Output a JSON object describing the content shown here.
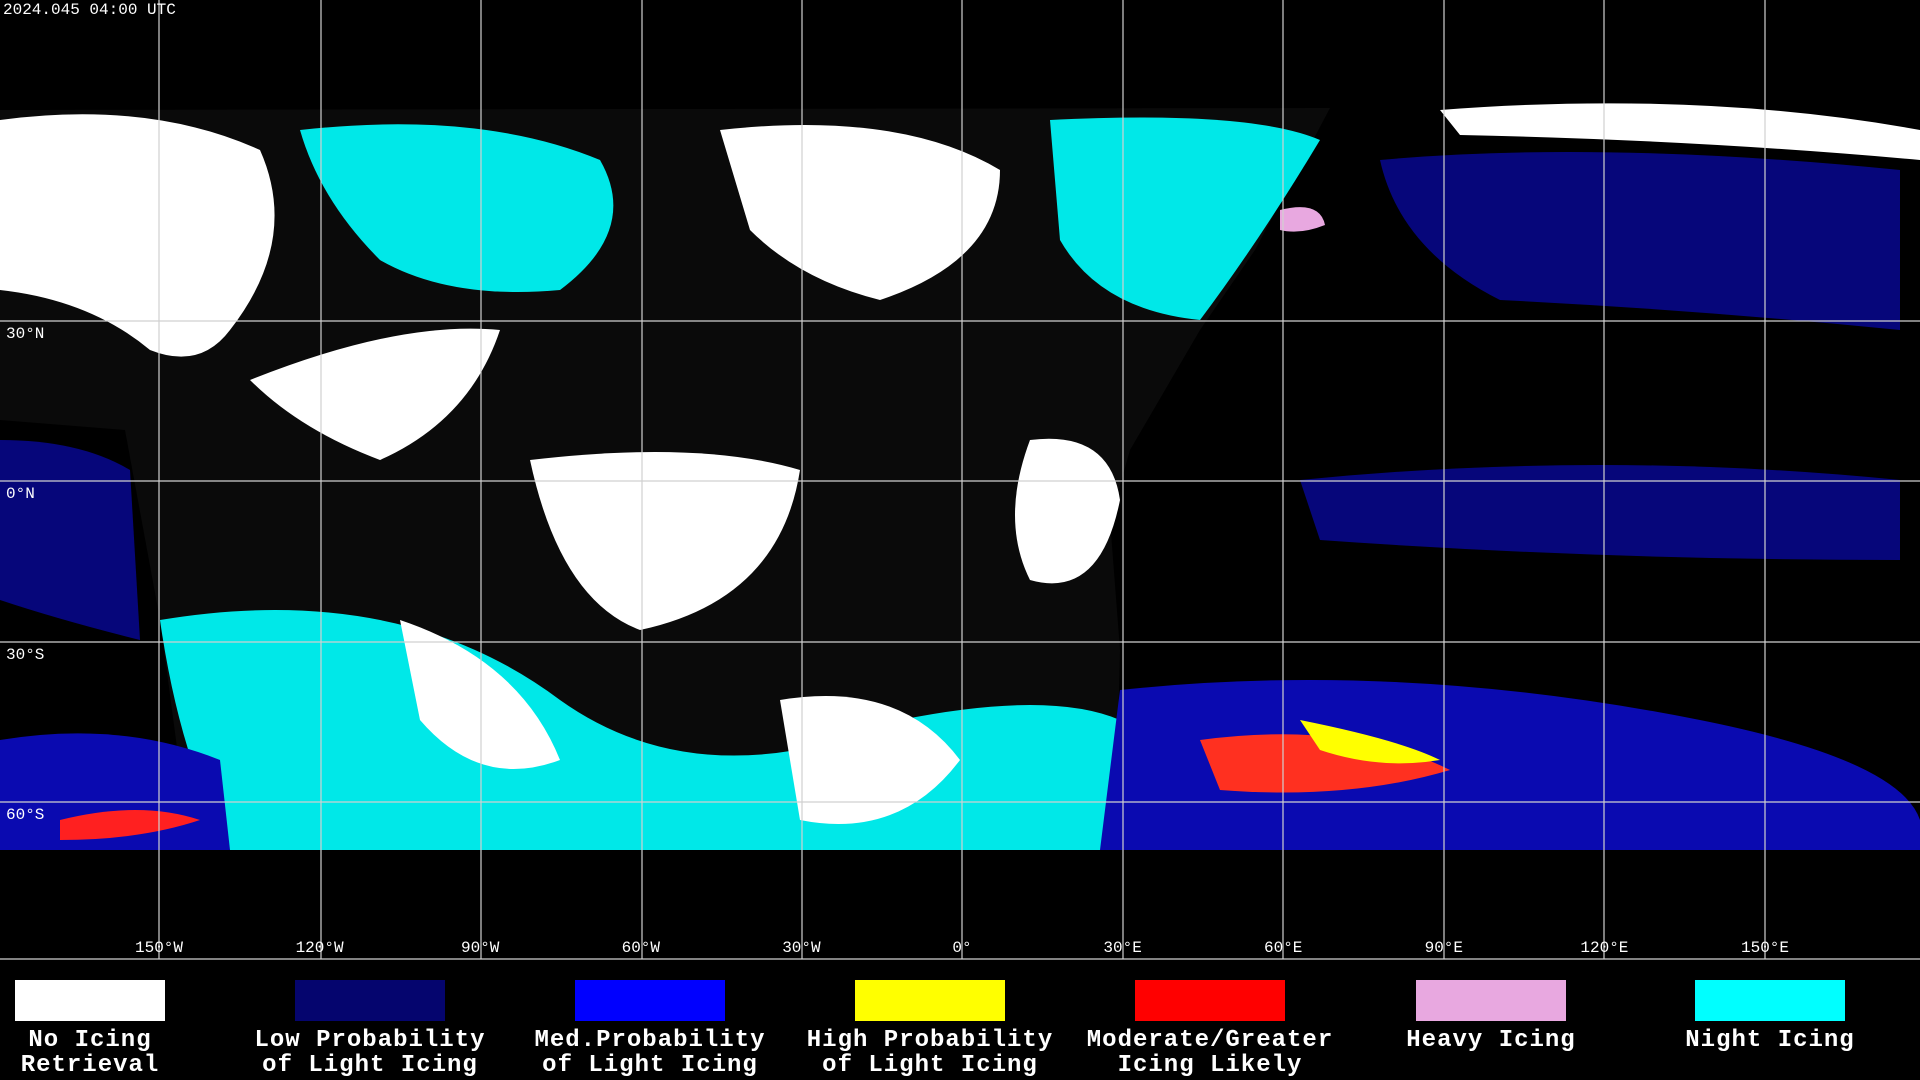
{
  "header": {
    "timestamp": "2024.045 04:00 UTC"
  },
  "map": {
    "latitude_labels": [
      "30°N",
      "0°N",
      "30°S",
      "60°S"
    ],
    "longitude_labels": [
      "150°W",
      "120°W",
      "90°W",
      "60°W",
      "30°W",
      "0°",
      "30°E",
      "60°E",
      "90°E",
      "120°E",
      "150°E"
    ]
  },
  "legend": {
    "items": [
      {
        "lines": [
          "No Icing",
          "Retrieval"
        ],
        "color": "#ffffff"
      },
      {
        "lines": [
          "Low Probability",
          "of Light Icing"
        ],
        "color": "#05056e"
      },
      {
        "lines": [
          "Med.Probability",
          "of Light Icing"
        ],
        "color": "#0000ff"
      },
      {
        "lines": [
          "High Probability",
          "of Light Icing"
        ],
        "color": "#ffff00"
      },
      {
        "lines": [
          "Moderate/Greater",
          "Icing Likely"
        ],
        "color": "#ff0000"
      },
      {
        "lines": [
          "Heavy Icing"
        ],
        "color": "#e8a8e0"
      },
      {
        "lines": [
          "Night Icing"
        ],
        "color": "#00ffff"
      }
    ]
  }
}
